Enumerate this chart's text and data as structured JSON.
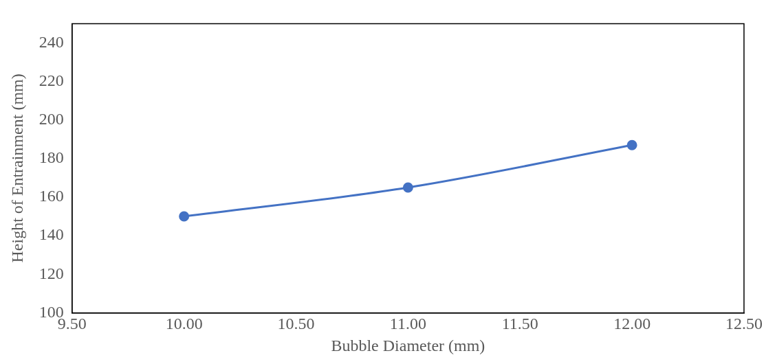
{
  "chart_data": {
    "type": "line",
    "xlabel": "Bubble Diameter (mm)",
    "ylabel": "Height of Entrainment (mm)",
    "x": [
      10,
      11,
      12
    ],
    "series": [
      {
        "color": "#4472c4",
        "values": [
          150,
          165,
          187
        ]
      }
    ],
    "xlim": [
      9.5,
      12.5
    ],
    "xticks": [
      {
        "value": 9.5,
        "label": "9.50"
      },
      {
        "value": 10,
        "label": "10.00"
      },
      {
        "value": 10.5,
        "label": "10.50"
      },
      {
        "value": 11,
        "label": "11.00"
      },
      {
        "value": 11.5,
        "label": "11.50"
      },
      {
        "value": 12,
        "label": "12.00"
      },
      {
        "value": 12.5,
        "label": "12.50"
      }
    ],
    "ylim": [
      100,
      250
    ],
    "yticks": [
      100,
      120,
      140,
      160,
      180,
      200,
      220,
      240
    ],
    "grid": false,
    "legend": false,
    "marker": "circle",
    "line_style": "solid"
  }
}
